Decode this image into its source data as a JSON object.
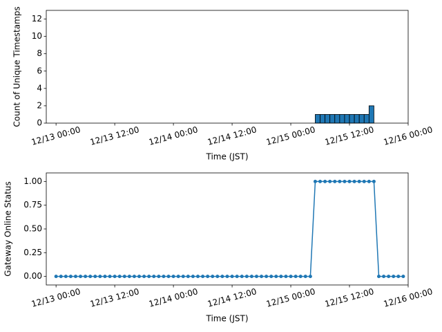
{
  "chart_data": [
    {
      "type": "histogram",
      "xlabel": "Time (JST)",
      "ylabel": "Count of Unique Timestamps",
      "bins": [
        "12/13 00:00",
        "12/13 01:00",
        "12/13 02:00",
        "12/13 03:00",
        "12/13 04:00",
        "12/13 05:00",
        "12/13 06:00",
        "12/13 07:00",
        "12/13 08:00",
        "12/13 09:00",
        "12/13 10:00",
        "12/13 11:00",
        "12/13 12:00",
        "12/13 13:00",
        "12/13 14:00",
        "12/13 15:00",
        "12/13 16:00",
        "12/13 17:00",
        "12/13 18:00",
        "12/13 19:00",
        "12/13 20:00",
        "12/13 21:00",
        "12/13 22:00",
        "12/13 23:00",
        "12/14 00:00",
        "12/14 01:00",
        "12/14 02:00",
        "12/14 03:00",
        "12/14 04:00",
        "12/14 05:00",
        "12/14 06:00",
        "12/14 07:00",
        "12/14 08:00",
        "12/14 09:00",
        "12/14 10:00",
        "12/14 11:00",
        "12/14 12:00",
        "12/14 13:00",
        "12/14 14:00",
        "12/14 15:00",
        "12/14 16:00",
        "12/14 17:00",
        "12/14 18:00",
        "12/14 19:00",
        "12/14 20:00",
        "12/14 21:00",
        "12/14 22:00",
        "12/14 23:00",
        "12/15 00:00",
        "12/15 01:00",
        "12/15 02:00",
        "12/15 03:00",
        "12/15 04:00",
        "12/15 05:00",
        "12/15 06:00",
        "12/15 07:00",
        "12/15 08:00",
        "12/15 09:00",
        "12/15 10:00",
        "12/15 11:00",
        "12/15 12:00",
        "12/15 13:00",
        "12/15 14:00",
        "12/15 15:00",
        "12/15 16:00",
        "12/15 17:00",
        "12/15 18:00",
        "12/15 19:00",
        "12/15 20:00",
        "12/15 21:00",
        "12/15 22:00"
      ],
      "values": [
        0,
        0,
        0,
        0,
        0,
        0,
        0,
        0,
        0,
        0,
        0,
        0,
        0,
        0,
        0,
        0,
        0,
        0,
        0,
        0,
        0,
        0,
        0,
        0,
        0,
        0,
        0,
        0,
        0,
        0,
        0,
        0,
        0,
        0,
        0,
        0,
        0,
        0,
        0,
        0,
        0,
        0,
        0,
        0,
        0,
        0,
        0,
        0,
        0,
        0,
        0,
        0,
        0,
        1,
        1,
        1,
        1,
        1,
        1,
        1,
        1,
        1,
        1,
        1,
        2,
        0,
        0,
        0,
        0,
        0
      ],
      "color": "#1f77b4",
      "edgecolor": "#000000",
      "xlim": [
        "12/12 22:00",
        "12/16 00:00"
      ],
      "xticks": [
        "12/13 00:00",
        "12/13 12:00",
        "12/14 00:00",
        "12/14 12:00",
        "12/15 00:00",
        "12/15 12:00",
        "12/16 00:00"
      ],
      "ylim": [
        0,
        13
      ],
      "yticks": [
        0,
        2,
        4,
        6,
        8,
        10,
        12
      ]
    },
    {
      "type": "line",
      "xlabel": "Time (JST)",
      "ylabel": "Gateway Online Status",
      "x": [
        "12/13 00:00",
        "12/13 01:00",
        "12/13 02:00",
        "12/13 03:00",
        "12/13 04:00",
        "12/13 05:00",
        "12/13 06:00",
        "12/13 07:00",
        "12/13 08:00",
        "12/13 09:00",
        "12/13 10:00",
        "12/13 11:00",
        "12/13 12:00",
        "12/13 13:00",
        "12/13 14:00",
        "12/13 15:00",
        "12/13 16:00",
        "12/13 17:00",
        "12/13 18:00",
        "12/13 19:00",
        "12/13 20:00",
        "12/13 21:00",
        "12/13 22:00",
        "12/13 23:00",
        "12/14 00:00",
        "12/14 01:00",
        "12/14 02:00",
        "12/14 03:00",
        "12/14 04:00",
        "12/14 05:00",
        "12/14 06:00",
        "12/14 07:00",
        "12/14 08:00",
        "12/14 09:00",
        "12/14 10:00",
        "12/14 11:00",
        "12/14 12:00",
        "12/14 13:00",
        "12/14 14:00",
        "12/14 15:00",
        "12/14 16:00",
        "12/14 17:00",
        "12/14 18:00",
        "12/14 19:00",
        "12/14 20:00",
        "12/14 21:00",
        "12/14 22:00",
        "12/14 23:00",
        "12/15 00:00",
        "12/15 01:00",
        "12/15 02:00",
        "12/15 03:00",
        "12/15 04:00",
        "12/15 05:00",
        "12/15 06:00",
        "12/15 07:00",
        "12/15 08:00",
        "12/15 09:00",
        "12/15 10:00",
        "12/15 11:00",
        "12/15 12:00",
        "12/15 13:00",
        "12/15 14:00",
        "12/15 15:00",
        "12/15 16:00",
        "12/15 17:00",
        "12/15 18:00",
        "12/15 19:00",
        "12/15 20:00",
        "12/15 21:00",
        "12/15 22:00",
        "12/15 23:00"
      ],
      "values": [
        0,
        0,
        0,
        0,
        0,
        0,
        0,
        0,
        0,
        0,
        0,
        0,
        0,
        0,
        0,
        0,
        0,
        0,
        0,
        0,
        0,
        0,
        0,
        0,
        0,
        0,
        0,
        0,
        0,
        0,
        0,
        0,
        0,
        0,
        0,
        0,
        0,
        0,
        0,
        0,
        0,
        0,
        0,
        0,
        0,
        0,
        0,
        0,
        0,
        0,
        0,
        0,
        0,
        1,
        1,
        1,
        1,
        1,
        1,
        1,
        1,
        1,
        1,
        1,
        1,
        1,
        0,
        0,
        0,
        0,
        0,
        0
      ],
      "color": "#1f77b4",
      "xlim": [
        "12/12 22:00",
        "12/16 00:00"
      ],
      "xticks": [
        "12/13 00:00",
        "12/13 12:00",
        "12/14 00:00",
        "12/14 12:00",
        "12/15 00:00",
        "12/15 12:00",
        "12/16 00:00"
      ],
      "ylim": [
        -0.09,
        1.09
      ],
      "yticks": [
        {
          "value": 0,
          "label": "0.00"
        },
        {
          "value": 0.25,
          "label": "0.25"
        },
        {
          "value": 0.5,
          "label": "0.50"
        },
        {
          "value": 0.75,
          "label": "0.75"
        },
        {
          "value": 1,
          "label": "1.00"
        }
      ]
    }
  ]
}
